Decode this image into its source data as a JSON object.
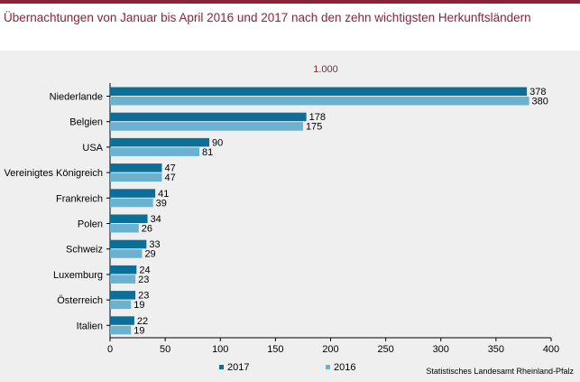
{
  "title": "Übernachtungen von Januar bis April 2016 und 2017 nach den zehn wichtigsten Herkunftsländern",
  "unit": "1.000",
  "source": "Statistisches Landesamt Rheinland-Pfalz",
  "colors": {
    "s2017": "#0b6f98",
    "s2016": "#6ab2d0",
    "accent": "#8b2339"
  },
  "chart_data": {
    "type": "bar",
    "orientation": "horizontal",
    "categories": [
      "Niederlande",
      "Belgien",
      "USA",
      "Vereinigtes Königreich",
      "Frankreich",
      "Polen",
      "Schweiz",
      "Luxemburg",
      "Österreich",
      "Italien"
    ],
    "series": [
      {
        "name": "2017",
        "values": [
          378,
          178,
          90,
          47,
          41,
          34,
          33,
          24,
          23,
          22
        ]
      },
      {
        "name": "2016",
        "values": [
          380,
          175,
          81,
          47,
          39,
          26,
          29,
          23,
          19,
          19
        ]
      }
    ],
    "xlim": [
      0,
      400
    ],
    "xticks": [
      0,
      50,
      100,
      150,
      200,
      250,
      300,
      350,
      400
    ],
    "legend": "bottom-left",
    "grid": false
  }
}
